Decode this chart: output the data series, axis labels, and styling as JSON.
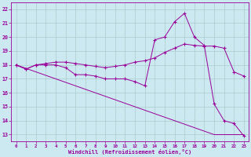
{
  "line1_x": [
    0,
    1,
    2,
    3,
    4,
    5,
    6,
    7,
    8,
    9,
    10,
    11,
    12,
    13,
    14,
    15,
    16,
    17,
    18,
    19,
    20,
    21,
    22,
    23
  ],
  "line1_y": [
    18.0,
    17.75,
    17.5,
    17.25,
    17.0,
    16.75,
    16.5,
    16.25,
    16.0,
    15.75,
    15.5,
    15.25,
    15.0,
    14.75,
    14.5,
    14.25,
    14.0,
    13.75,
    13.5,
    13.25,
    13.0,
    13.0,
    13.0,
    13.0
  ],
  "line2_x": [
    0,
    1,
    2,
    3,
    4,
    5,
    6,
    7,
    8,
    9,
    10,
    11,
    12,
    13,
    14,
    15,
    16,
    17,
    18,
    19,
    20,
    21,
    22,
    23
  ],
  "line2_y": [
    18.0,
    17.7,
    18.0,
    18.1,
    18.2,
    18.2,
    18.1,
    18.0,
    17.9,
    17.8,
    17.9,
    18.0,
    18.2,
    18.3,
    18.5,
    18.9,
    19.2,
    19.5,
    19.4,
    19.35,
    19.35,
    19.2,
    17.5,
    17.2
  ],
  "line3_x": [
    0,
    1,
    2,
    3,
    4,
    5,
    6,
    7,
    8,
    9,
    10,
    11,
    12,
    13,
    14,
    15,
    16,
    17,
    18,
    19,
    20,
    21,
    22,
    23
  ],
  "line3_y": [
    18.0,
    17.7,
    18.0,
    18.0,
    18.0,
    17.8,
    17.3,
    17.3,
    17.2,
    17.0,
    17.0,
    17.0,
    16.8,
    16.5,
    19.8,
    20.0,
    21.1,
    21.7,
    20.0,
    19.4,
    15.2,
    14.0,
    13.8,
    12.9
  ],
  "line_color": "#990099",
  "bg_color": "#cce8f0",
  "grid_color": "#aacccc",
  "xlabel": "Windchill (Refroidissement éolien,°C)",
  "xlim": [
    -0.5,
    23.5
  ],
  "ylim": [
    12.5,
    22.5
  ],
  "xticks": [
    0,
    1,
    2,
    3,
    4,
    5,
    6,
    7,
    8,
    9,
    10,
    11,
    12,
    13,
    14,
    15,
    16,
    17,
    18,
    19,
    20,
    21,
    22,
    23
  ],
  "yticks": [
    13,
    14,
    15,
    16,
    17,
    18,
    19,
    20,
    21,
    22
  ],
  "marker": "+"
}
